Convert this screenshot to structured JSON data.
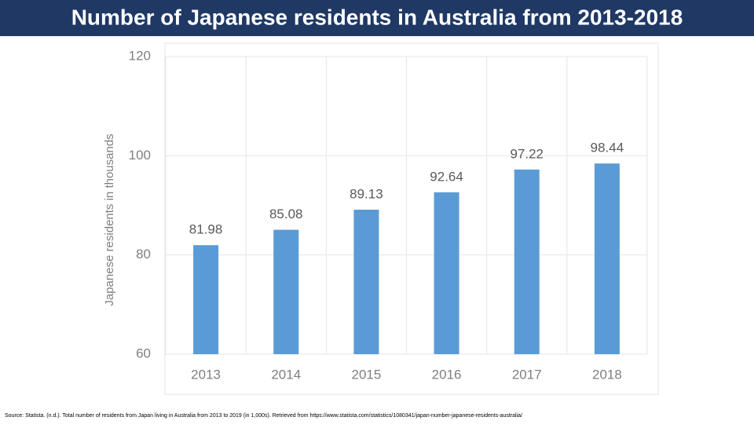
{
  "chart_data": {
    "type": "bar",
    "title": "Number of Japanese residents in Australia from 2013-2018",
    "y_label": "Japanese residents in thousands",
    "categories": [
      "2013",
      "2014",
      "2015",
      "2016",
      "2017",
      "2018"
    ],
    "values": [
      81.98,
      85.08,
      89.13,
      92.64,
      97.22,
      98.44
    ],
    "color": "#5b9bd5",
    "ylim": [
      60,
      120
    ],
    "yticks": [
      60,
      80,
      100,
      120
    ],
    "grid": true,
    "source": "Source: Statista. (n.d.). Total number of residents from Japan living in Australia from 2013 to 2019 (in 1,000s). Retrieved from https://www.statista.com/statistics/1080341/japan-number-japanese-residents-australia/"
  }
}
